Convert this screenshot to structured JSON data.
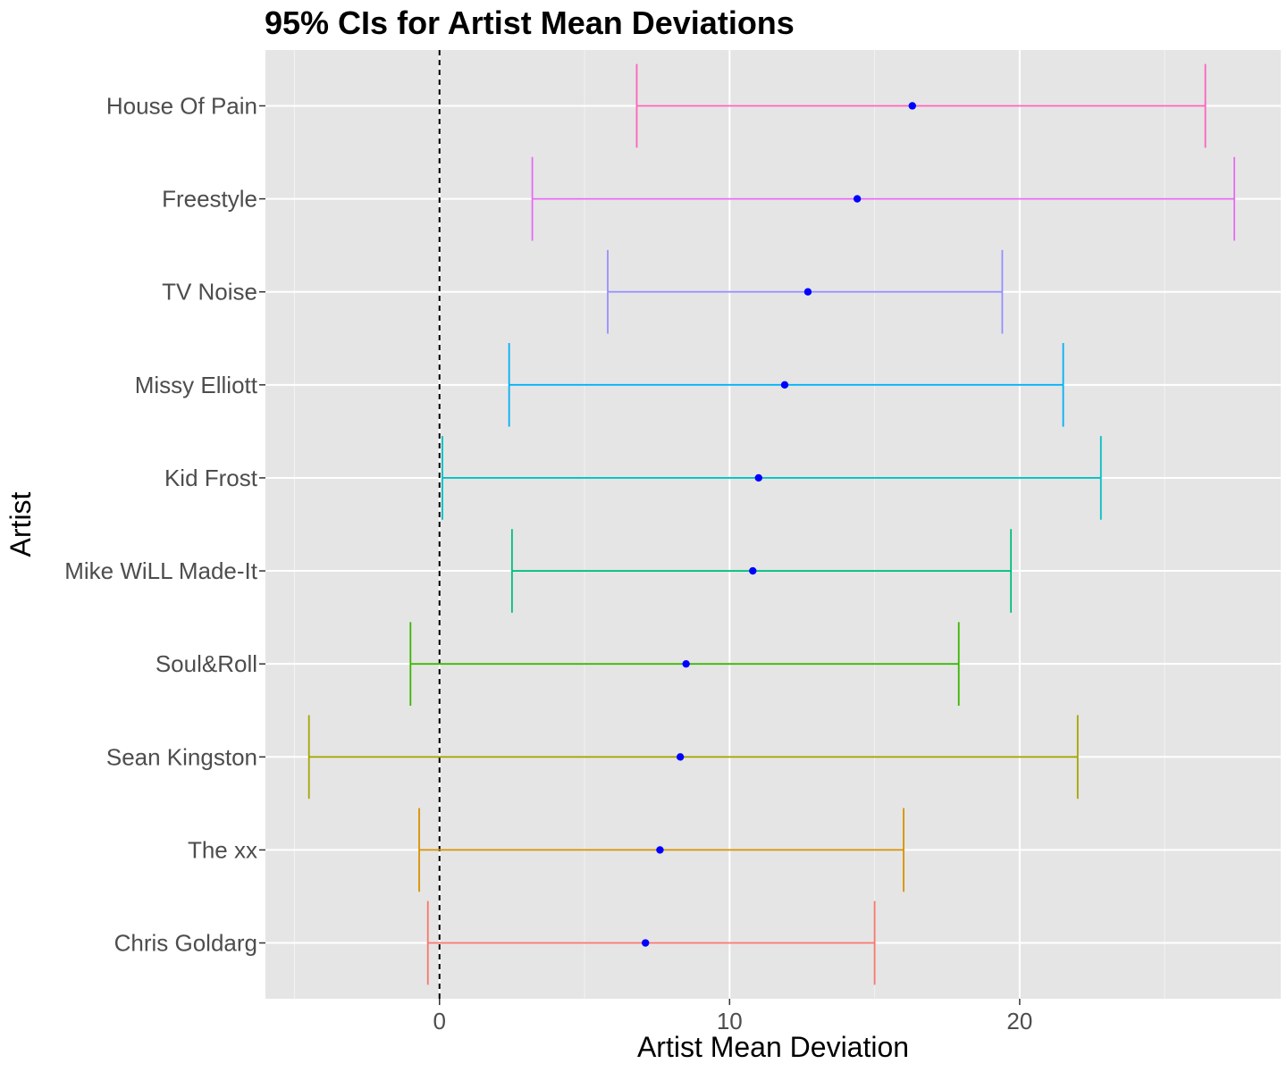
{
  "chart_data": {
    "type": "errorbar",
    "title": "95% CIs for Artist Mean Deviations",
    "xlabel": "Artist Mean Deviation",
    "ylabel": "Artist",
    "xlim": [
      -6,
      29
    ],
    "x_ticks": [
      0,
      10,
      20
    ],
    "x_tick_labels": [
      "0",
      "10",
      "20"
    ],
    "x_minor_ticks": [
      -5,
      5,
      15,
      25
    ],
    "reference_line": {
      "x": 0,
      "style": "dashed"
    },
    "grid": true,
    "legend": "none",
    "point_color": "#0000ff",
    "series": [
      {
        "name": "Chris Goldarg",
        "mean": 7.1,
        "lower": -0.4,
        "upper": 15.0,
        "color": "#F8766D"
      },
      {
        "name": "The xx",
        "mean": 7.6,
        "lower": -0.7,
        "upper": 16.0,
        "color": "#D89000"
      },
      {
        "name": "Sean Kingston",
        "mean": 8.3,
        "lower": -4.5,
        "upper": 22.0,
        "color": "#A3A500"
      },
      {
        "name": "Soul&Roll",
        "mean": 8.5,
        "lower": -1.0,
        "upper": 17.9,
        "color": "#39B600"
      },
      {
        "name": "Mike WiLL Made-It",
        "mean": 10.8,
        "lower": 2.5,
        "upper": 19.7,
        "color": "#00BF7D"
      },
      {
        "name": "Kid Frost",
        "mean": 11.0,
        "lower": 0.1,
        "upper": 22.8,
        "color": "#00BFC4"
      },
      {
        "name": "Missy Elliott",
        "mean": 11.9,
        "lower": 2.4,
        "upper": 21.5,
        "color": "#00B0F6"
      },
      {
        "name": "TV Noise",
        "mean": 12.7,
        "lower": 5.8,
        "upper": 19.4,
        "color": "#9590FF"
      },
      {
        "name": "Freestyle",
        "mean": 14.4,
        "lower": 3.2,
        "upper": 27.4,
        "color": "#E76BF3"
      },
      {
        "name": "House Of Pain",
        "mean": 16.3,
        "lower": 6.8,
        "upper": 26.4,
        "color": "#FF62BC"
      }
    ]
  }
}
